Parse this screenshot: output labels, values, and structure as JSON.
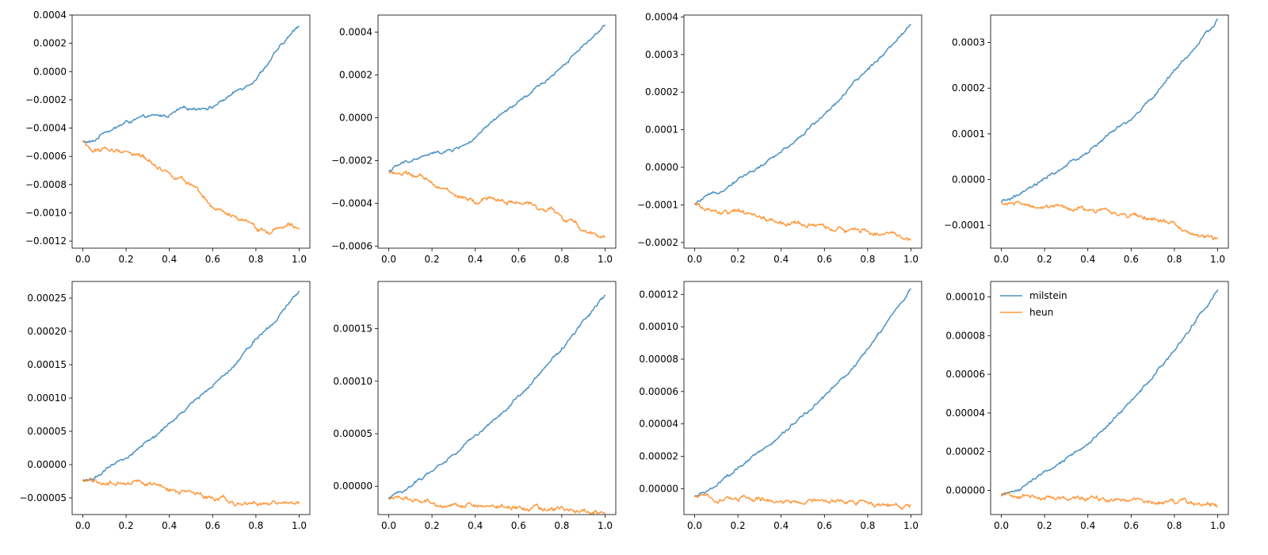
{
  "colors": {
    "milstein": "#1f77b4",
    "heun": "#ff7f0e",
    "axes": "#000000",
    "background": "#ffffff"
  },
  "chart_data": [
    {
      "type": "line",
      "xlim": [
        0,
        1
      ],
      "ylim": [
        -0.00125,
        0.0004
      ],
      "x_ticks": [
        0,
        0.2,
        0.4,
        0.6,
        0.8,
        1.0
      ],
      "x_tick_labels": [
        "0.0",
        "0.2",
        "0.4",
        "0.6",
        "0.8",
        "1.0"
      ],
      "y_ticks": [
        -0.0012,
        -0.001,
        -0.0008,
        -0.0006,
        -0.0004,
        -0.0002,
        0.0,
        0.0002,
        0.0004
      ],
      "y_tick_labels": [
        "−0.0012",
        "−0.0010",
        "−0.0008",
        "−0.0006",
        "−0.0004",
        "−0.0002",
        "0.0000",
        "0.0002",
        "0.0004"
      ],
      "series": [
        {
          "key": "milstein",
          "x": [
            0,
            0.05,
            0.1,
            0.15,
            0.2,
            0.3,
            0.4,
            0.45,
            0.5,
            0.6,
            0.7,
            0.8,
            0.9,
            1.0
          ],
          "y": [
            -0.0005,
            -0.0005,
            -0.00042,
            -0.0004,
            -0.00036,
            -0.00032,
            -0.00031,
            -0.00027,
            -0.00026,
            -0.00025,
            -0.00015,
            -5e-05,
            0.00015,
            0.00033
          ]
        },
        {
          "key": "heun",
          "x": [
            0,
            0.05,
            0.1,
            0.15,
            0.2,
            0.3,
            0.4,
            0.45,
            0.5,
            0.6,
            0.65,
            0.7,
            0.8,
            0.85,
            0.9,
            0.95,
            1.0
          ],
          "y": [
            -0.0005,
            -0.00057,
            -0.00054,
            -0.00057,
            -0.00056,
            -0.00062,
            -0.00072,
            -0.00075,
            -0.00081,
            -0.00097,
            -0.001,
            -0.00104,
            -0.0011,
            -0.00114,
            -0.00111,
            -0.00106,
            -0.00109
          ]
        }
      ]
    },
    {
      "type": "line",
      "xlim": [
        0,
        1
      ],
      "ylim": [
        -0.00061,
        0.00048
      ],
      "x_ticks": [
        0,
        0.2,
        0.4,
        0.6,
        0.8,
        1.0
      ],
      "x_tick_labels": [
        "0.0",
        "0.2",
        "0.4",
        "0.6",
        "0.8",
        "1.0"
      ],
      "y_ticks": [
        -0.0006,
        -0.0004,
        -0.0002,
        0.0,
        0.0002,
        0.0004
      ],
      "y_tick_labels": [
        "−0.0006",
        "−0.0004",
        "−0.0002",
        "0.0000",
        "0.0002",
        "0.0004"
      ],
      "series": [
        {
          "key": "milstein",
          "x": [
            0,
            0.05,
            0.1,
            0.2,
            0.3,
            0.4,
            0.5,
            0.6,
            0.7,
            0.8,
            0.9,
            1.0
          ],
          "y": [
            -0.00025,
            -0.00022,
            -0.0002,
            -0.00017,
            -0.00015,
            -0.0001,
            0.0,
            7e-05,
            0.00015,
            0.00024,
            0.00034,
            0.00043
          ]
        },
        {
          "key": "heun",
          "x": [
            0,
            0.05,
            0.1,
            0.2,
            0.3,
            0.4,
            0.45,
            0.5,
            0.6,
            0.7,
            0.75,
            0.8,
            0.9,
            1.0
          ],
          "y": [
            -0.00025,
            -0.00026,
            -0.00027,
            -0.0003,
            -0.00036,
            -0.0004,
            -0.00038,
            -0.00038,
            -0.0004,
            -0.00042,
            -0.00042,
            -0.00047,
            -0.00052,
            -0.00056
          ]
        }
      ]
    },
    {
      "type": "line",
      "xlim": [
        0,
        1
      ],
      "ylim": [
        -0.000215,
        0.000405
      ],
      "x_ticks": [
        0,
        0.2,
        0.4,
        0.6,
        0.8,
        1.0
      ],
      "x_tick_labels": [
        "0.0",
        "0.2",
        "0.4",
        "0.6",
        "0.8",
        "1.0"
      ],
      "y_ticks": [
        -0.0002,
        -0.0001,
        0.0,
        0.0001,
        0.0002,
        0.0003,
        0.0004
      ],
      "y_tick_labels": [
        "−0.0002",
        "−0.0001",
        "0.0000",
        "0.0001",
        "0.0002",
        "0.0003",
        "0.0004"
      ],
      "series": [
        {
          "key": "milstein",
          "x": [
            0,
            0.05,
            0.1,
            0.2,
            0.3,
            0.4,
            0.5,
            0.6,
            0.7,
            0.8,
            0.9,
            1.0
          ],
          "y": [
            -0.0001,
            -8e-05,
            -7e-05,
            -3e-05,
            0.0,
            4e-05,
            9e-05,
            0.00014,
            0.0002,
            0.00026,
            0.00032,
            0.00038
          ]
        },
        {
          "key": "heun",
          "x": [
            0,
            0.1,
            0.2,
            0.3,
            0.4,
            0.5,
            0.6,
            0.7,
            0.8,
            0.9,
            1.0
          ],
          "y": [
            -0.0001,
            -0.00012,
            -0.00012,
            -0.00013,
            -0.00015,
            -0.00015,
            -0.00016,
            -0.00017,
            -0.00017,
            -0.00018,
            -0.00019
          ]
        }
      ]
    },
    {
      "type": "line",
      "xlim": [
        0,
        1
      ],
      "ylim": [
        -0.00015,
        0.00036
      ],
      "x_ticks": [
        0,
        0.2,
        0.4,
        0.6,
        0.8,
        1.0
      ],
      "x_tick_labels": [
        "0.0",
        "0.2",
        "0.4",
        "0.6",
        "0.8",
        "1.0"
      ],
      "y_ticks": [
        -0.0001,
        0.0,
        0.0001,
        0.0002,
        0.0003
      ],
      "y_tick_labels": [
        "−0.0001",
        "0.0000",
        "0.0001",
        "0.0002",
        "0.0003"
      ],
      "series": [
        {
          "key": "milstein",
          "x": [
            0,
            0.05,
            0.1,
            0.2,
            0.3,
            0.4,
            0.5,
            0.6,
            0.7,
            0.8,
            0.9,
            1.0
          ],
          "y": [
            -5e-05,
            -4e-05,
            -3e-05,
            0.0,
            3e-05,
            6e-05,
            0.0001,
            0.00013,
            0.00018,
            0.00024,
            0.00029,
            0.00035
          ]
        },
        {
          "key": "heun",
          "x": [
            0,
            0.1,
            0.2,
            0.3,
            0.4,
            0.5,
            0.6,
            0.7,
            0.8,
            0.9,
            1.0
          ],
          "y": [
            -5e-05,
            -5.5e-05,
            -6e-05,
            -6.3e-05,
            -6.6e-05,
            -7e-05,
            -8e-05,
            -8.5e-05,
            -0.0001,
            -0.00012,
            -0.00013
          ]
        }
      ]
    },
    {
      "type": "line",
      "xlim": [
        0,
        1
      ],
      "ylim": [
        -7.5e-05,
        0.000275
      ],
      "x_ticks": [
        0,
        0.2,
        0.4,
        0.6,
        0.8,
        1.0
      ],
      "x_tick_labels": [
        "0.0",
        "0.2",
        "0.4",
        "0.6",
        "0.8",
        "1.0"
      ],
      "y_ticks": [
        -5e-05,
        0.0,
        5e-05,
        0.0001,
        0.00015,
        0.0002,
        0.00025
      ],
      "y_tick_labels": [
        "−0.00005",
        "0.00000",
        "0.00005",
        "0.00010",
        "0.00015",
        "0.00020",
        "0.00025"
      ],
      "series": [
        {
          "key": "milstein",
          "x": [
            0,
            0.05,
            0.1,
            0.2,
            0.3,
            0.4,
            0.5,
            0.6,
            0.7,
            0.8,
            0.9,
            1.0
          ],
          "y": [
            -2.5e-05,
            -2e-05,
            -1e-05,
            1e-05,
            3.5e-05,
            6e-05,
            9e-05,
            0.00012,
            0.00015,
            0.00019,
            0.00022,
            0.000262
          ]
        },
        {
          "key": "heun",
          "x": [
            0,
            0.1,
            0.2,
            0.3,
            0.4,
            0.5,
            0.6,
            0.7,
            0.8,
            0.9,
            1.0
          ],
          "y": [
            -2.5e-05,
            -2.7e-05,
            -2.8e-05,
            -3e-05,
            -3.6e-05,
            -4.2e-05,
            -4.8e-05,
            -5.5e-05,
            -5.8e-05,
            -6e-05,
            -6e-05
          ]
        }
      ]
    },
    {
      "type": "line",
      "xlim": [
        0,
        1
      ],
      "ylim": [
        -2.7e-05,
        0.000195
      ],
      "x_ticks": [
        0,
        0.2,
        0.4,
        0.6,
        0.8,
        1.0
      ],
      "x_tick_labels": [
        "0.0",
        "0.2",
        "0.4",
        "0.6",
        "0.8",
        "1.0"
      ],
      "y_ticks": [
        0.0,
        5e-05,
        0.0001,
        0.00015
      ],
      "y_tick_labels": [
        "0.00000",
        "0.00005",
        "0.00010",
        "0.00015"
      ],
      "series": [
        {
          "key": "milstein",
          "x": [
            0,
            0.05,
            0.1,
            0.2,
            0.3,
            0.4,
            0.5,
            0.6,
            0.7,
            0.8,
            0.9,
            1.0
          ],
          "y": [
            -1.2e-05,
            -6e-06,
            0.0,
            1.5e-05,
            3e-05,
            4.8e-05,
            6.6e-05,
            8.5e-05,
            0.000108,
            0.00013,
            0.000158,
            0.000182
          ]
        },
        {
          "key": "heun",
          "x": [
            0,
            0.1,
            0.2,
            0.3,
            0.4,
            0.5,
            0.6,
            0.7,
            0.8,
            0.9,
            1.0
          ],
          "y": [
            -1.2e-05,
            -1.3e-05,
            -1.5e-05,
            -1.7e-05,
            -1.9e-05,
            -2e-05,
            -2e-05,
            -2.1e-05,
            -2.2e-05,
            -2.4e-05,
            -2.5e-05
          ]
        }
      ]
    },
    {
      "type": "line",
      "xlim": [
        0,
        1
      ],
      "ylim": [
        -1.6e-05,
        0.000128
      ],
      "x_ticks": [
        0,
        0.2,
        0.4,
        0.6,
        0.8,
        1.0
      ],
      "x_tick_labels": [
        "0.0",
        "0.2",
        "0.4",
        "0.6",
        "0.8",
        "1.0"
      ],
      "y_ticks": [
        0.0,
        2e-05,
        4e-05,
        6e-05,
        8e-05,
        0.0001,
        0.00012
      ],
      "y_tick_labels": [
        "0.00000",
        "0.00002",
        "0.00004",
        "0.00006",
        "0.00008",
        "0.00010",
        "0.00012"
      ],
      "series": [
        {
          "key": "milstein",
          "x": [
            0,
            0.05,
            0.1,
            0.2,
            0.3,
            0.4,
            0.5,
            0.6,
            0.7,
            0.8,
            0.9,
            1.0
          ],
          "y": [
            -5e-06,
            -2e-06,
            2e-06,
            1.2e-05,
            2.2e-05,
            3.3e-05,
            4.5e-05,
            5.7e-05,
            7e-05,
            8.6e-05,
            0.000105,
            0.000123
          ]
        },
        {
          "key": "heun",
          "x": [
            0,
            0.1,
            0.2,
            0.3,
            0.4,
            0.5,
            0.6,
            0.7,
            0.8,
            0.9,
            1.0
          ],
          "y": [
            -5e-06,
            -6e-06,
            -6e-06,
            -7e-06,
            -7e-06,
            -8e-06,
            -8e-06,
            -8e-06,
            -9e-06,
            -1e-05,
            -1.1e-05
          ]
        }
      ]
    },
    {
      "type": "line",
      "xlim": [
        0,
        1
      ],
      "ylim": [
        -1.25e-05,
        0.000108
      ],
      "x_ticks": [
        0,
        0.2,
        0.4,
        0.6,
        0.8,
        1.0
      ],
      "x_tick_labels": [
        "0.0",
        "0.2",
        "0.4",
        "0.6",
        "0.8",
        "1.0"
      ],
      "y_ticks": [
        0.0,
        2e-05,
        4e-05,
        6e-05,
        8e-05,
        0.0001
      ],
      "y_tick_labels": [
        "0.00000",
        "0.00002",
        "0.00004",
        "0.00006",
        "0.00008",
        "0.00010"
      ],
      "legend": {
        "placement": "upper-left",
        "entries": [
          {
            "key": "milstein",
            "label": "milstein"
          },
          {
            "key": "heun",
            "label": "heun"
          }
        ]
      },
      "series": [
        {
          "key": "milstein",
          "x": [
            0,
            0.05,
            0.1,
            0.2,
            0.3,
            0.4,
            0.5,
            0.6,
            0.7,
            0.8,
            0.9,
            1.0
          ],
          "y": [
            -3e-06,
            -1e-06,
            2e-06,
            9e-06,
            1.6e-05,
            2.4e-05,
            3.5e-05,
            4.6e-05,
            5.9e-05,
            7.3e-05,
            8.8e-05,
            0.000104
          ]
        },
        {
          "key": "heun",
          "x": [
            0,
            0.1,
            0.2,
            0.3,
            0.4,
            0.5,
            0.6,
            0.7,
            0.8,
            0.9,
            1.0
          ],
          "y": [
            -3e-06,
            -3.5e-06,
            -3.8e-06,
            -4e-06,
            -4.2e-06,
            -4.5e-06,
            -5e-06,
            -5.5e-06,
            -6.2e-06,
            -7e-06,
            -8e-06
          ]
        }
      ]
    }
  ]
}
